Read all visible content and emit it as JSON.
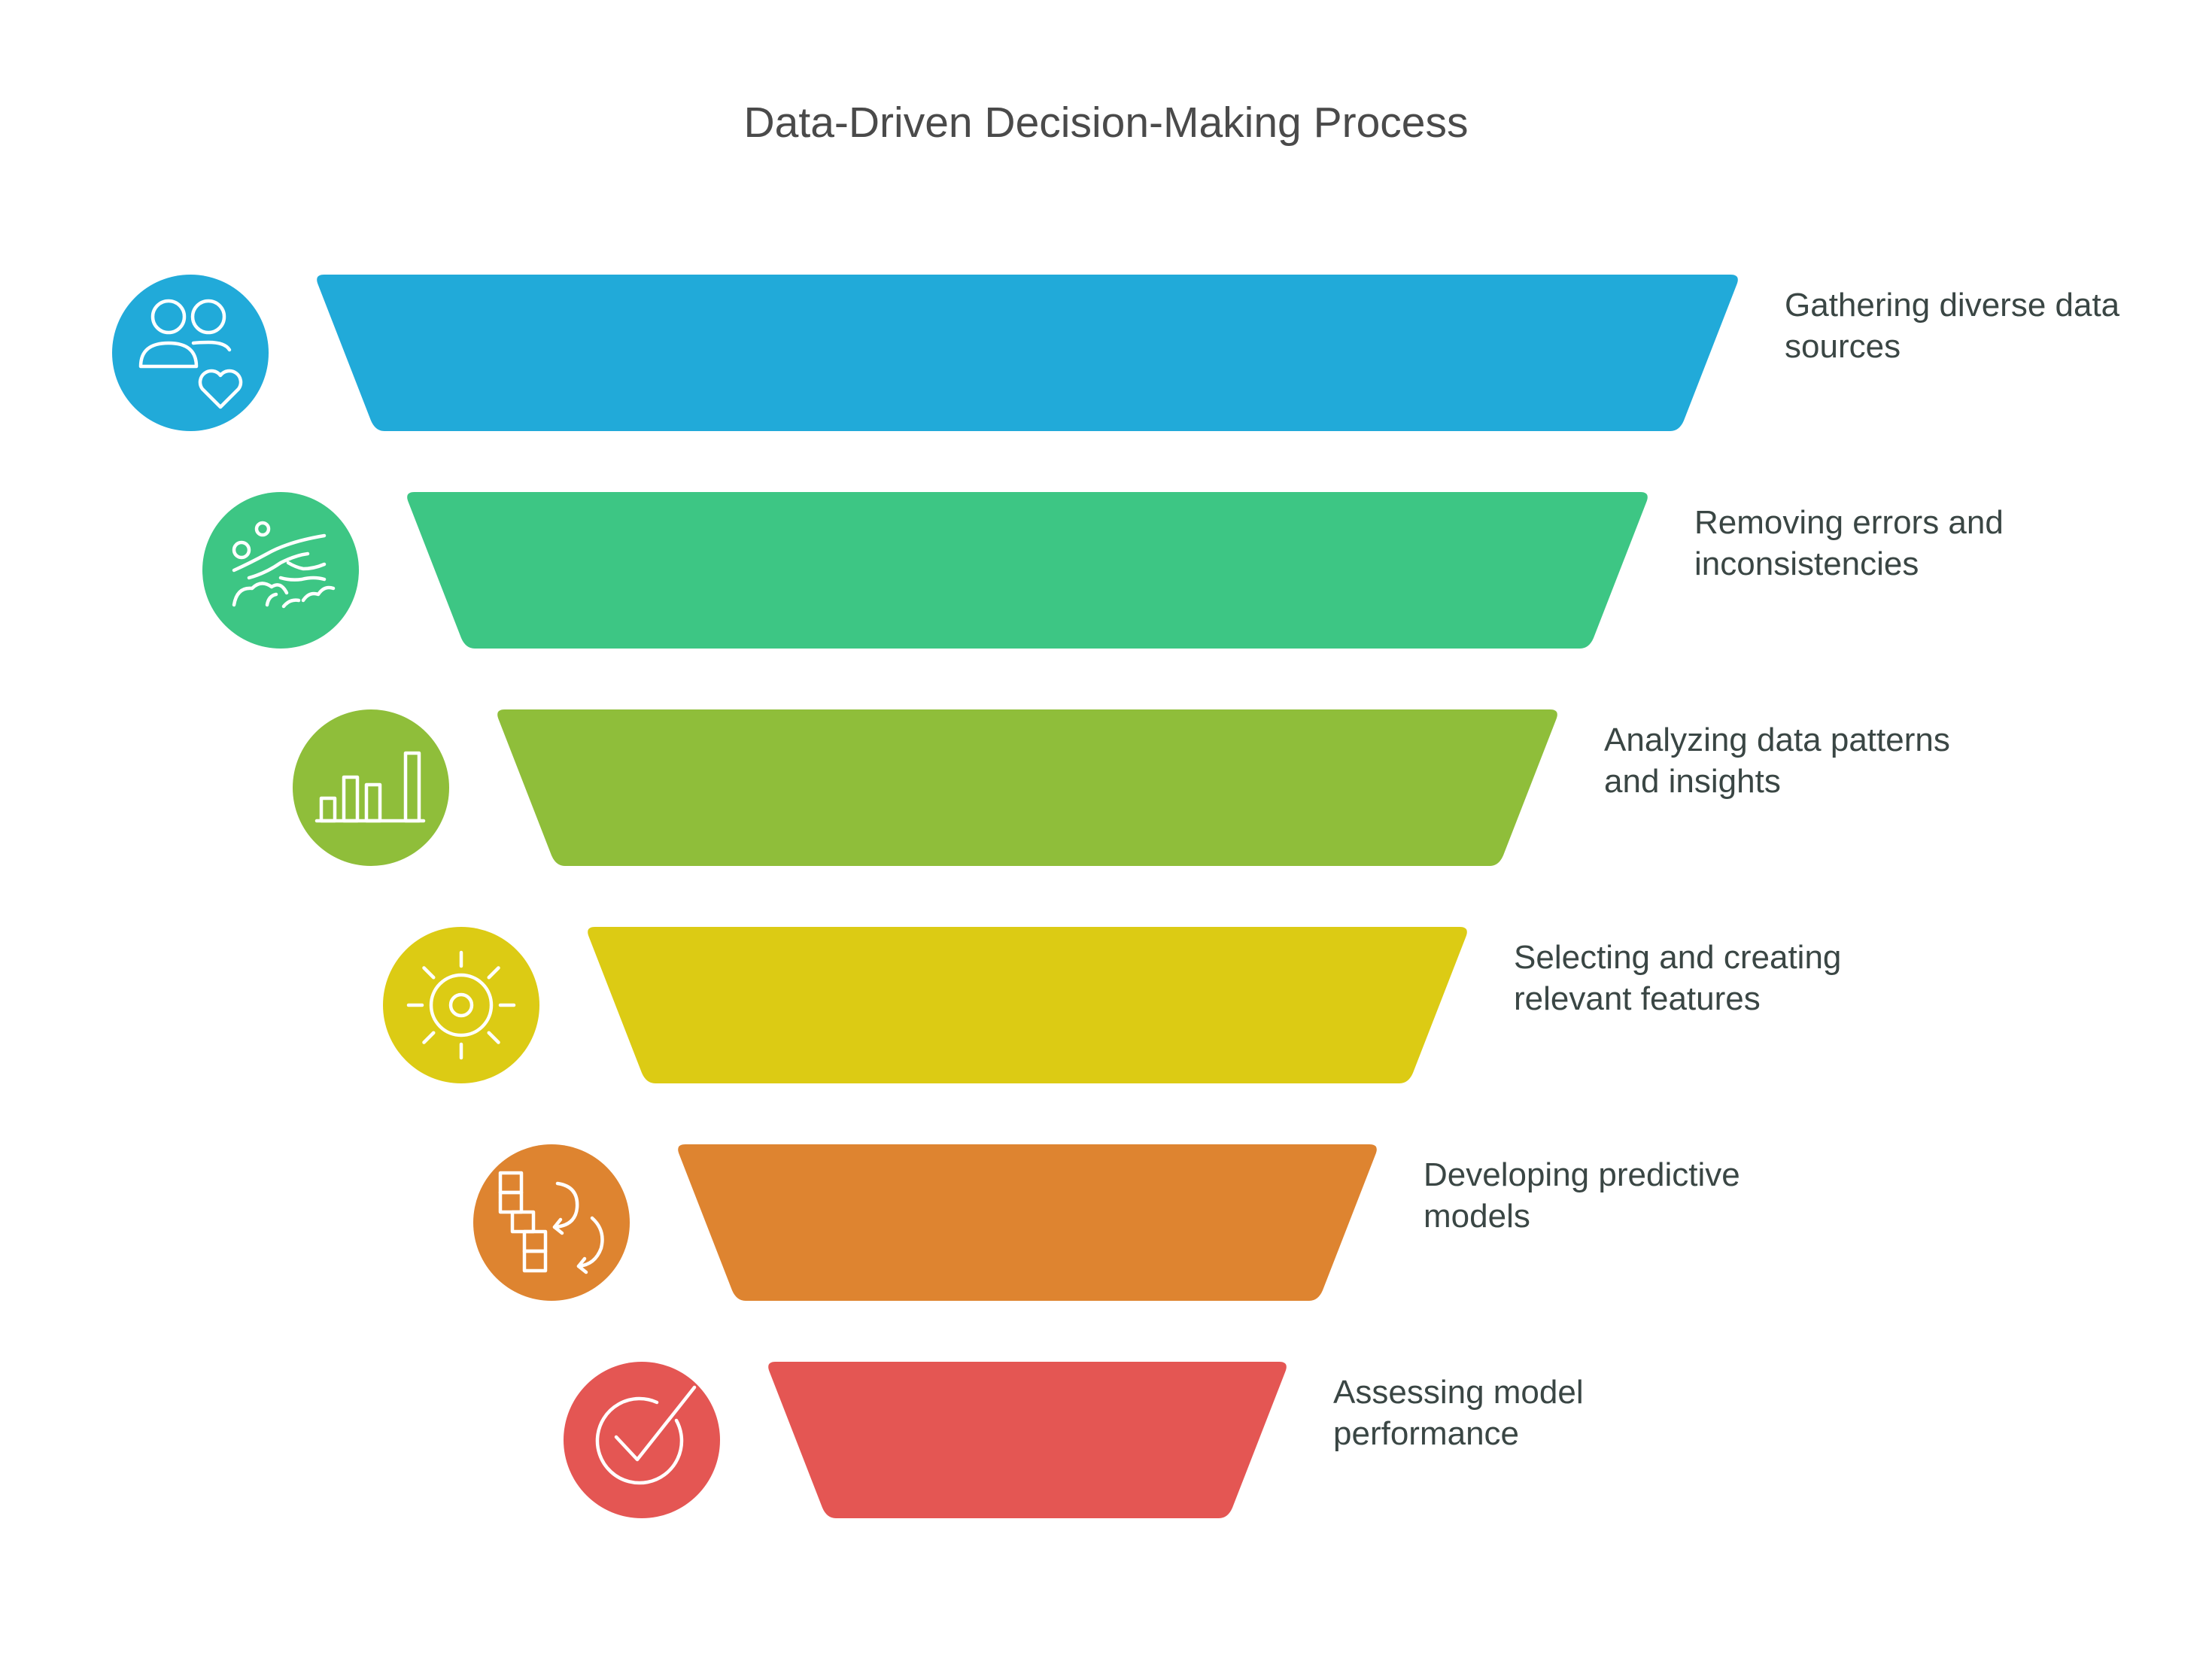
{
  "title": "Data-Driven Decision-Making Process",
  "stages": [
    {
      "label_lines": [
        "Gathering diverse data",
        "sources"
      ],
      "color": "#21AAD9",
      "icon": "people-heart-icon",
      "name": "gathering"
    },
    {
      "label_lines": [
        "Removing errors and",
        "inconsistencies"
      ],
      "color": "#3DC684",
      "icon": "hand-washing-icon",
      "name": "cleaning"
    },
    {
      "label_lines": [
        "Analyzing data patterns",
        "and insights"
      ],
      "color": "#8FBE3A",
      "icon": "bar-chart-icon",
      "name": "analyzing"
    },
    {
      "label_lines": [
        "Selecting and creating",
        "relevant features"
      ],
      "color": "#DCCB14",
      "icon": "sun-gear-icon",
      "name": "features"
    },
    {
      "label_lines": [
        "Developing predictive",
        "models"
      ],
      "color": "#DE8430",
      "icon": "blocks-arrows-icon",
      "name": "modeling"
    },
    {
      "label_lines": [
        "Assessing model",
        "performance"
      ],
      "color": "#E45653",
      "icon": "check-circle-icon",
      "name": "assessing"
    }
  ]
}
